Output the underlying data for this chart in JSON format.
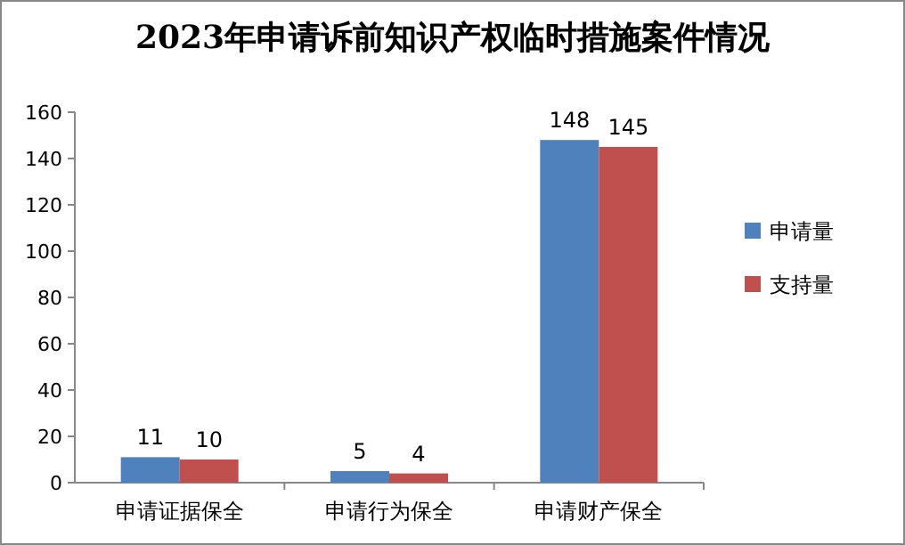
{
  "chart_data": {
    "type": "bar",
    "title": "2023年申请诉前知识产权临时措施案件情况",
    "categories": [
      "申请证据保全",
      "申请行为保全",
      "申请财产保全"
    ],
    "series": [
      {
        "name": "申请量",
        "color": "#4f81bd",
        "values": [
          11,
          5,
          148
        ]
      },
      {
        "name": "支持量",
        "color": "#c0504d",
        "values": [
          10,
          4,
          145
        ]
      }
    ],
    "ylim": [
      0,
      160
    ],
    "yticks": [
      0,
      20,
      40,
      60,
      80,
      100,
      120,
      140,
      160
    ],
    "data_labels": true,
    "legend": "right",
    "grid": false
  }
}
